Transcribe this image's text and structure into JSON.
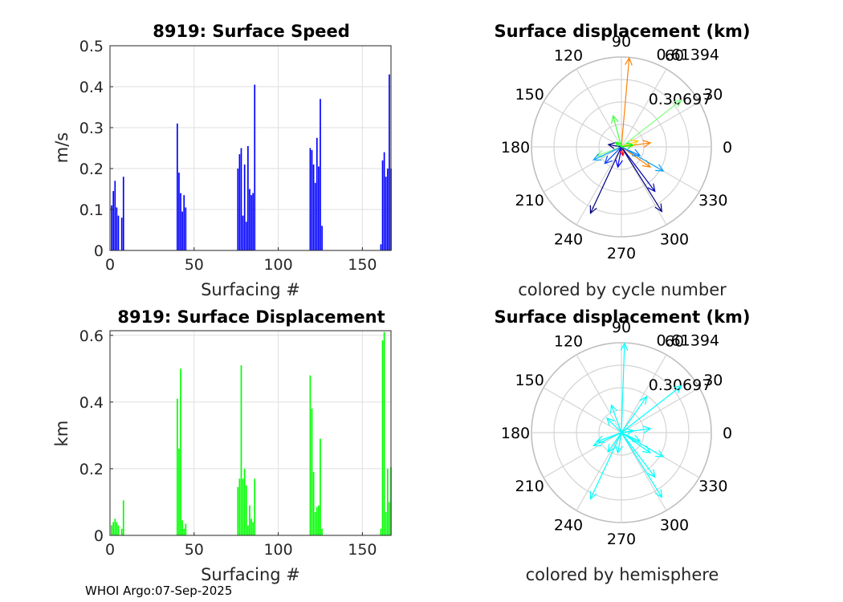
{
  "footer": "WHOI Argo:07-Sep-2025",
  "chart_data": [
    {
      "id": "speed",
      "type": "bar",
      "title": "8919: Surface Speed",
      "xlabel": "Surfacing #",
      "ylabel": "m/s",
      "xlim": [
        0,
        167
      ],
      "ylim": [
        0,
        0.5
      ],
      "xticks": [
        0,
        50,
        100,
        150
      ],
      "yticks": [
        0,
        0.1,
        0.2,
        0.3,
        0.4,
        0.5
      ],
      "grid": true,
      "color": "#0000ff",
      "x": [
        1,
        2,
        3,
        4,
        5,
        7,
        8,
        40,
        41,
        42,
        43,
        44,
        45,
        76,
        77,
        78,
        79,
        80,
        81,
        82,
        83,
        84,
        85,
        86,
        87,
        88,
        119,
        120,
        121,
        122,
        123,
        124,
        125,
        126,
        127,
        161,
        162,
        163,
        164,
        165,
        166,
        167
      ],
      "values": [
        0.11,
        0.145,
        0.17,
        0.105,
        0.085,
        0.08,
        0.18,
        0.31,
        0.19,
        0.14,
        0.095,
        0.135,
        0.105,
        0.2,
        0.235,
        0.25,
        0.085,
        0.21,
        0.07,
        0.255,
        0.15,
        0.135,
        0.14,
        0.405,
        0.0,
        0.0,
        0.25,
        0.245,
        0.21,
        0.165,
        0.275,
        0.205,
        0.37,
        0.06,
        0.0,
        0.015,
        0.22,
        0.24,
        0.18,
        0.2,
        0.43,
        0.2
      ]
    },
    {
      "id": "displacement",
      "type": "bar",
      "title": "8919: Surface Displacement",
      "xlabel": "Surfacing #",
      "ylabel": "km",
      "xlim": [
        0,
        167
      ],
      "ylim": [
        0,
        0.61394
      ],
      "xticks": [
        0,
        50,
        100,
        150
      ],
      "yticks": [
        0,
        0.2,
        0.4,
        0.6
      ],
      "grid": true,
      "color": "#00ff00",
      "x": [
        1,
        2,
        3,
        4,
        5,
        7,
        8,
        40,
        41,
        42,
        43,
        44,
        45,
        76,
        77,
        78,
        79,
        80,
        81,
        82,
        83,
        84,
        85,
        86,
        87,
        88,
        119,
        120,
        121,
        122,
        123,
        124,
        125,
        126,
        127,
        161,
        162,
        163,
        164,
        165,
        166,
        167
      ],
      "values": [
        0.03,
        0.04,
        0.05,
        0.04,
        0.03,
        0.02,
        0.105,
        0.41,
        0.26,
        0.5,
        0.045,
        0.02,
        0.035,
        0.145,
        0.17,
        0.51,
        0.17,
        0.2,
        0.15,
        0.03,
        0.09,
        0.05,
        0.04,
        0.17,
        0.0,
        0.0,
        0.48,
        0.38,
        0.19,
        0.07,
        0.085,
        0.09,
        0.29,
        0.02,
        0.0,
        0.02,
        0.585,
        0.61,
        0.07,
        0.2,
        0.1,
        0.205
      ]
    },
    {
      "id": "polar-cycle",
      "type": "polar-vector",
      "title": "Surface displacement (km)",
      "caption": "colored by cycle number",
      "rmax": 0.61394,
      "rticks": [
        0.30697,
        0.61394
      ],
      "rtick_labels": [
        "0.30697",
        "0.61394"
      ],
      "theta_ticks": [
        0,
        30,
        60,
        90,
        120,
        150,
        180,
        210,
        240,
        270,
        300,
        330
      ],
      "vectors": [
        {
          "r": 0.61,
          "theta": 85,
          "color": "#ff8000"
        },
        {
          "r": 0.52,
          "theta": 38,
          "color": "#80ff80"
        },
        {
          "r": 0.2,
          "theta": 8,
          "color": "#ff8000"
        },
        {
          "r": 0.12,
          "theta": 20,
          "color": "#ffd000"
        },
        {
          "r": 0.22,
          "theta": 105,
          "color": "#40ff40"
        },
        {
          "r": 0.18,
          "theta": 200,
          "color": "#80ff80"
        },
        {
          "r": 0.21,
          "theta": 205,
          "color": "#00a0ff"
        },
        {
          "r": 0.09,
          "theta": 170,
          "color": "#000080"
        },
        {
          "r": 0.16,
          "theta": 225,
          "color": "#0040ff"
        },
        {
          "r": 0.5,
          "theta": 245,
          "color": "#000080"
        },
        {
          "r": 0.14,
          "theta": 260,
          "color": "#0000ff"
        },
        {
          "r": 0.06,
          "theta": 280,
          "color": "#ff0000"
        },
        {
          "r": 0.52,
          "theta": 302,
          "color": "#000080"
        },
        {
          "r": 0.38,
          "theta": 307,
          "color": "#0000b0"
        },
        {
          "r": 0.24,
          "theta": 325,
          "color": "#ff8000"
        },
        {
          "r": 0.33,
          "theta": 330,
          "color": "#00a0ff"
        },
        {
          "r": 0.14,
          "theta": 335,
          "color": "#0080ff"
        },
        {
          "r": 0.08,
          "theta": 10,
          "color": "#00ff00"
        },
        {
          "r": 0.05,
          "theta": 140,
          "color": "#00ff00"
        }
      ]
    },
    {
      "id": "polar-hemisphere",
      "type": "polar-vector",
      "title": "Surface displacement (km)",
      "caption": "colored by hemisphere",
      "rmax": 0.61394,
      "rticks": [
        0.30697,
        0.61394
      ],
      "rtick_labels": [
        "0.30697",
        "0.61394"
      ],
      "theta_ticks": [
        0,
        30,
        60,
        90,
        120,
        150,
        180,
        210,
        240,
        270,
        300,
        330
      ],
      "vectors": [
        {
          "r": 0.61,
          "theta": 88,
          "color": "#00ffff"
        },
        {
          "r": 0.52,
          "theta": 38,
          "color": "#00ffff"
        },
        {
          "r": 0.3,
          "theta": 55,
          "color": "#00ffff"
        },
        {
          "r": 0.2,
          "theta": 8,
          "color": "#00ffff"
        },
        {
          "r": 0.2,
          "theta": 110,
          "color": "#00ffff"
        },
        {
          "r": 0.14,
          "theta": 135,
          "color": "#00ffff"
        },
        {
          "r": 0.18,
          "theta": 200,
          "color": "#00ffff"
        },
        {
          "r": 0.21,
          "theta": 205,
          "color": "#00ffff"
        },
        {
          "r": 0.16,
          "theta": 235,
          "color": "#00ffff"
        },
        {
          "r": 0.5,
          "theta": 245,
          "color": "#00ffff"
        },
        {
          "r": 0.14,
          "theta": 260,
          "color": "#00ffff"
        },
        {
          "r": 0.52,
          "theta": 302,
          "color": "#00ffff"
        },
        {
          "r": 0.38,
          "theta": 307,
          "color": "#00ffff"
        },
        {
          "r": 0.24,
          "theta": 325,
          "color": "#00ffff"
        },
        {
          "r": 0.33,
          "theta": 330,
          "color": "#00ffff"
        },
        {
          "r": 0.14,
          "theta": 335,
          "color": "#00ffff"
        },
        {
          "r": 0.08,
          "theta": 10,
          "color": "#00ffff"
        }
      ]
    }
  ]
}
